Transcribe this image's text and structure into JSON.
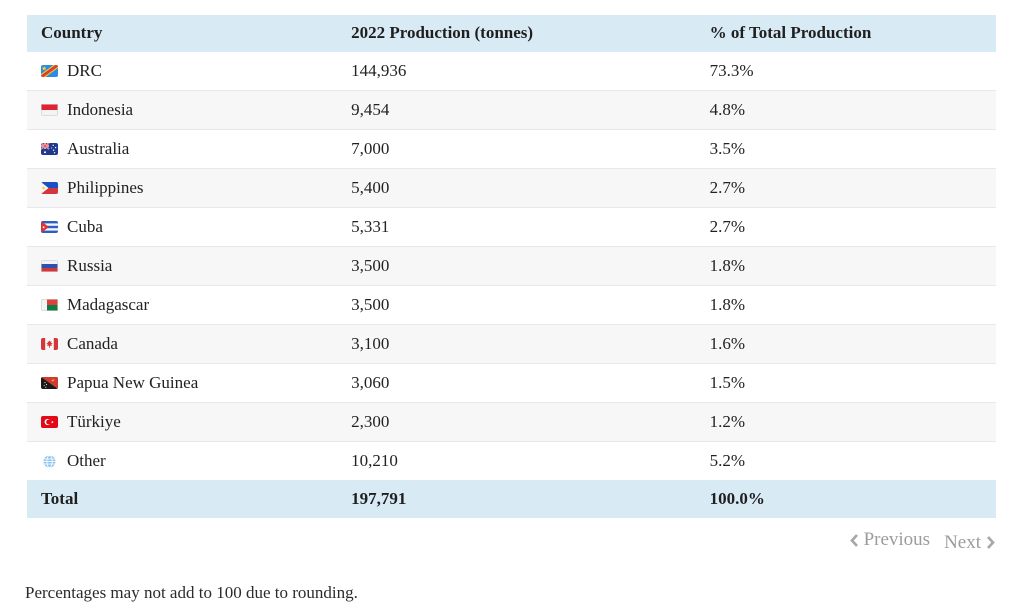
{
  "table": {
    "columns": [
      "Country",
      "2022 Production (tonnes)",
      "% of Total Production"
    ],
    "rows": [
      {
        "flag_icon": "drc-flag-icon",
        "country": "DRC",
        "production": "144,936",
        "percent": "73.3%"
      },
      {
        "flag_icon": "indonesia-flag-icon",
        "country": "Indonesia",
        "production": "9,454",
        "percent": "4.8%"
      },
      {
        "flag_icon": "australia-flag-icon",
        "country": "Australia",
        "production": "7,000",
        "percent": "3.5%"
      },
      {
        "flag_icon": "philippines-flag-icon",
        "country": "Philippines",
        "production": "5,400",
        "percent": "2.7%"
      },
      {
        "flag_icon": "cuba-flag-icon",
        "country": "Cuba",
        "production": "5,331",
        "percent": "2.7%"
      },
      {
        "flag_icon": "russia-flag-icon",
        "country": "Russia",
        "production": "3,500",
        "percent": "1.8%"
      },
      {
        "flag_icon": "madagascar-flag-icon",
        "country": "Madagascar",
        "production": "3,500",
        "percent": "1.8%"
      },
      {
        "flag_icon": "canada-flag-icon",
        "country": "Canada",
        "production": "3,100",
        "percent": "1.6%"
      },
      {
        "flag_icon": "papua-new-guinea-flag-icon",
        "country": "Papua New Guinea",
        "production": "3,060",
        "percent": "1.5%"
      },
      {
        "flag_icon": "turkiye-flag-icon",
        "country": "Türkiye",
        "production": "2,300",
        "percent": "1.2%"
      },
      {
        "flag_icon": "globe-icon",
        "country": "Other",
        "production": "10,210",
        "percent": "5.2%"
      }
    ],
    "total_row": {
      "label": "Total",
      "production": "197,791",
      "percent": "100.0%"
    }
  },
  "pagination": {
    "previous_label": "Previous",
    "next_label": "Next"
  },
  "footnote": "Percentages may not add to 100 due to rounding.",
  "colors": {
    "header_bg": "#d8eaf4",
    "total_bg": "#d8eaf4",
    "alt_row_bg": "#f7f7f7",
    "row_border": "#e8e8e8",
    "text": "#222222",
    "pagination_text": "#9c9c9c"
  }
}
